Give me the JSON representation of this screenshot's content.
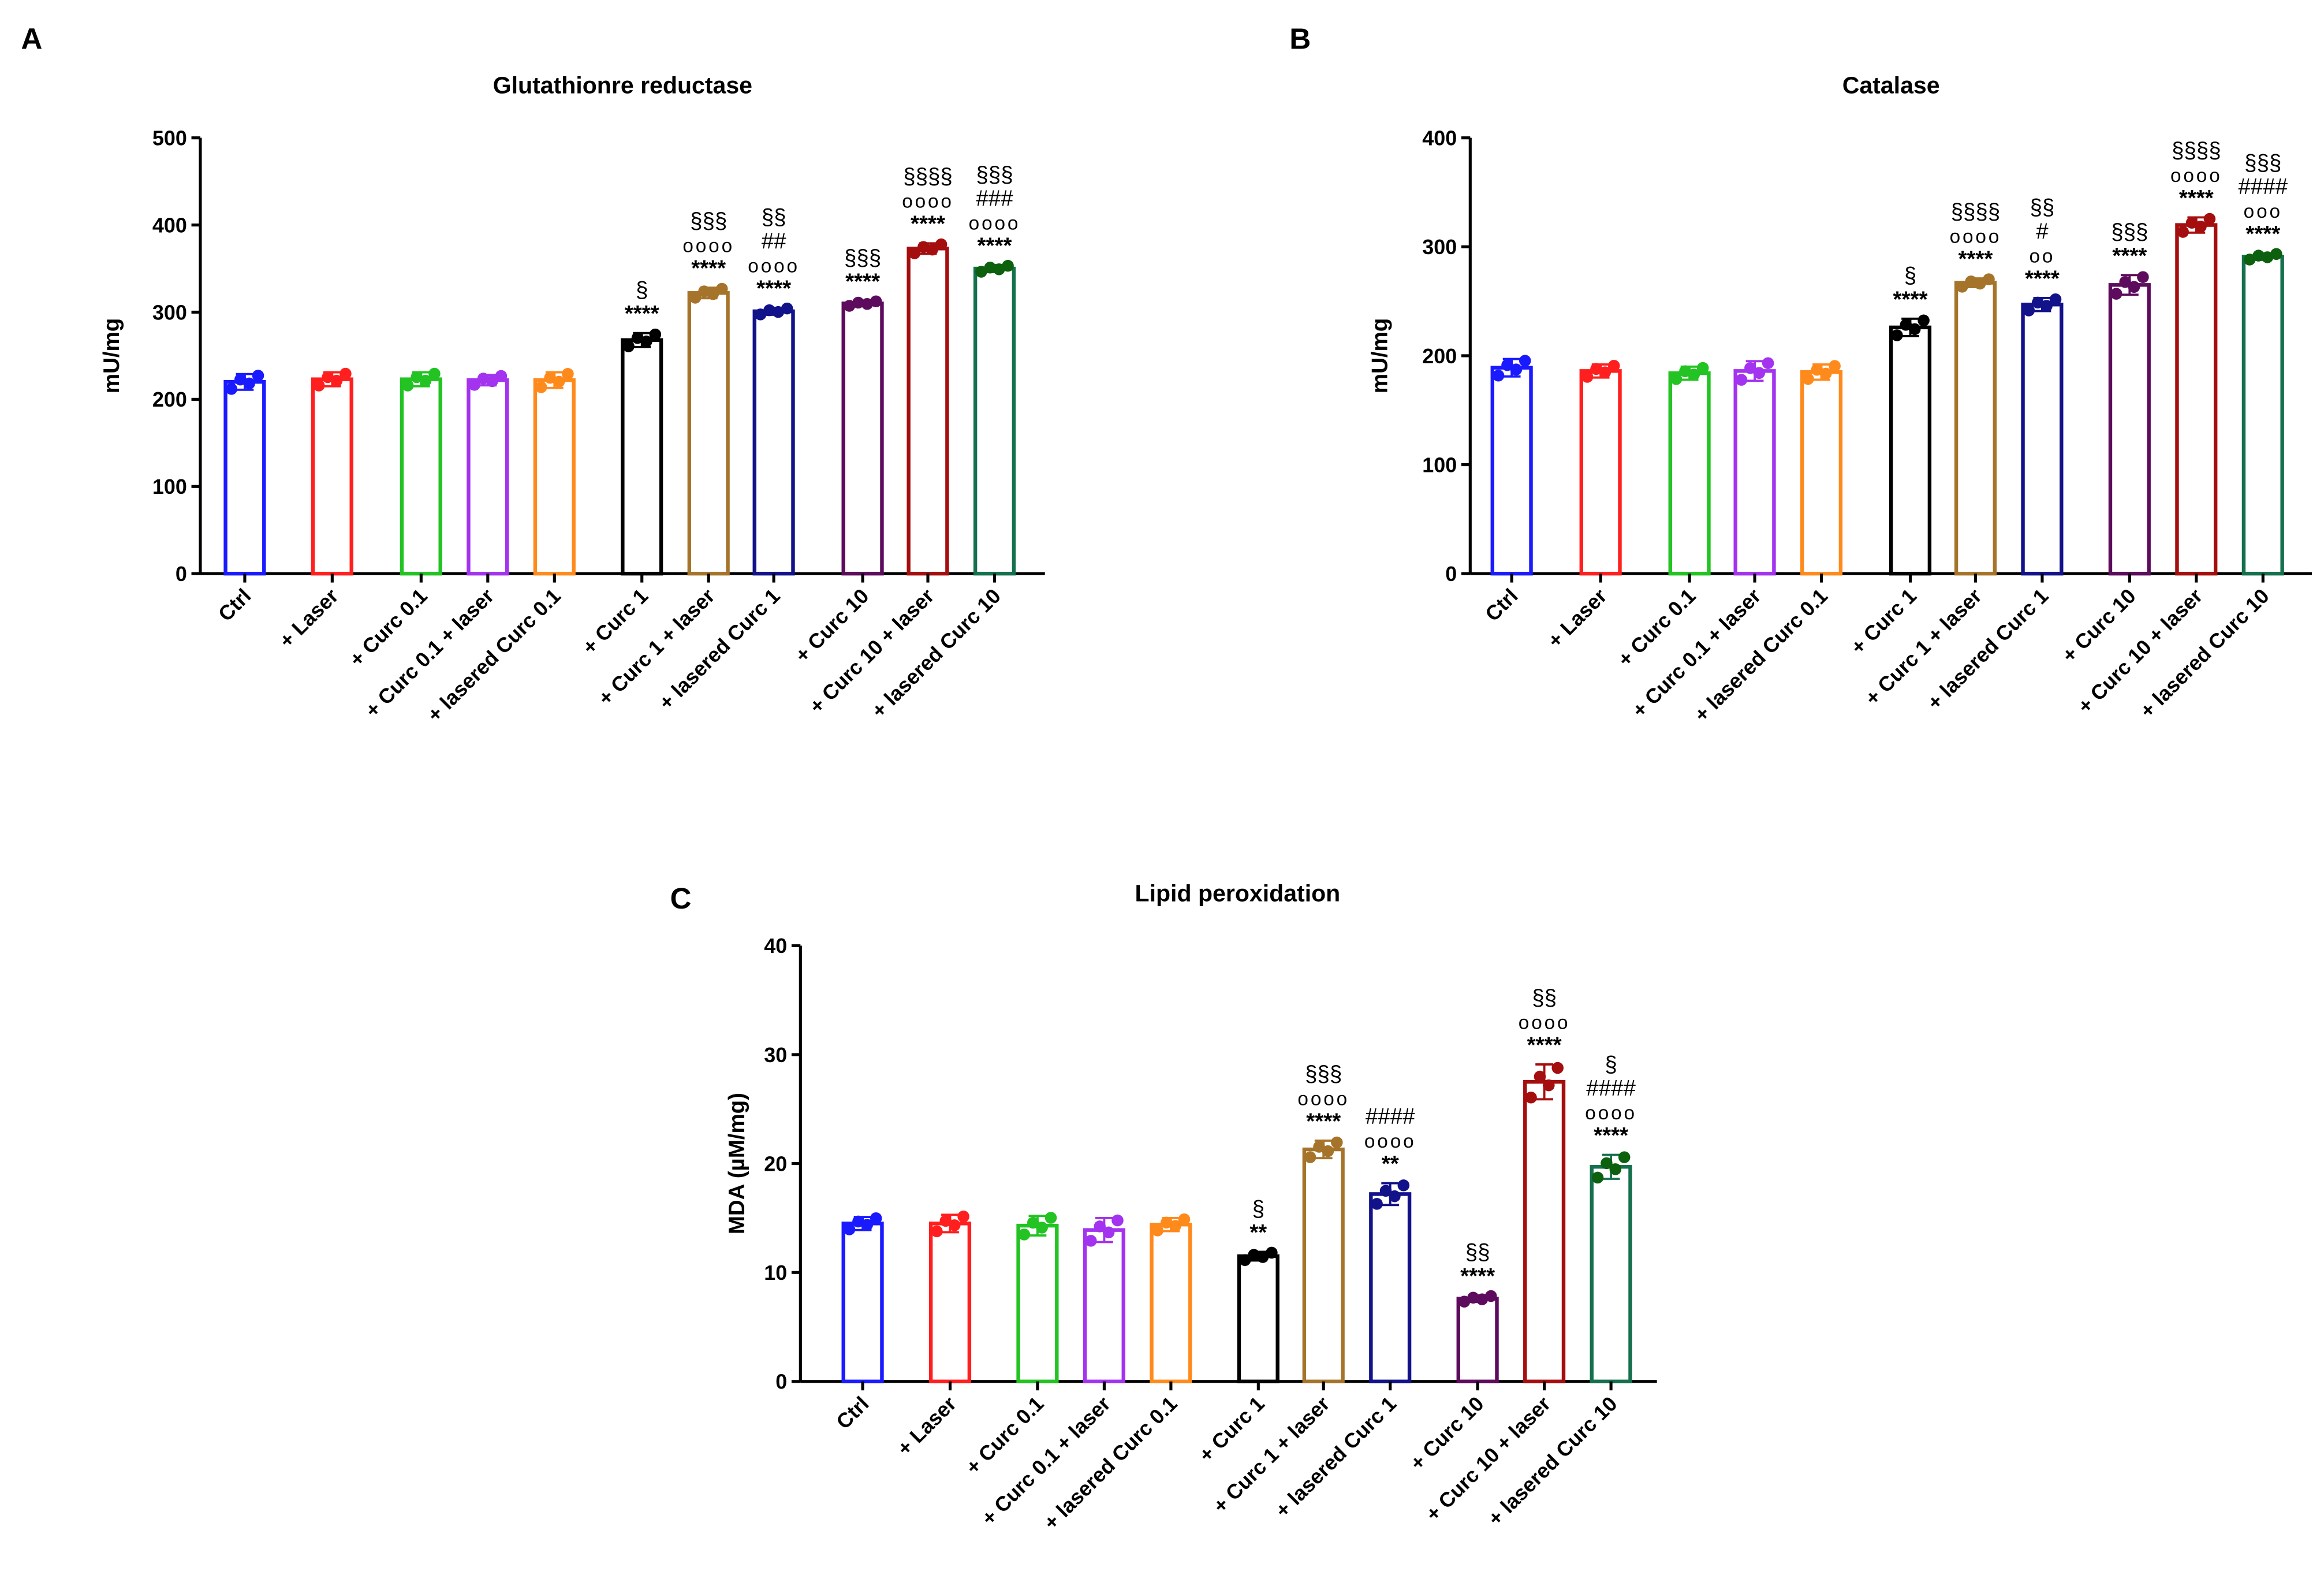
{
  "chart_data": [
    {
      "type": "bar",
      "panel": "A",
      "title": "Glutathionre reductase",
      "ylabel": "mU/mg",
      "xlabel": "",
      "ylim": [
        0,
        500
      ],
      "yticks": [
        0,
        100,
        200,
        300,
        400,
        500
      ],
      "categories": [
        "Ctrl",
        "+ Laser",
        "+ Curc 0.1",
        "+ Curc 0.1 + laser",
        "+ lasered Curc 0.1",
        "+ Curc 1",
        "+ Curc 1 + laser",
        "+ lasered Curc 1",
        "+ Curc 10",
        "+ Curc 10 + laser",
        "+ lasered Curc 10"
      ],
      "values": [
        220,
        223,
        223,
        222,
        222,
        268,
        322,
        301,
        310,
        373,
        350
      ],
      "errors": [
        9,
        8,
        8,
        6,
        9,
        8,
        6,
        4,
        3,
        6,
        4
      ],
      "annotations": [
        [],
        [],
        [],
        [],
        [],
        [
          "§",
          "****"
        ],
        [
          "§§§",
          "oooo",
          "****"
        ],
        [
          "§§",
          "##",
          "oooo",
          "****"
        ],
        [
          "§§§",
          "****"
        ],
        [
          "§§§§",
          "oooo",
          "****"
        ],
        [
          "§§§",
          "###",
          "oooo",
          "****"
        ]
      ]
    },
    {
      "type": "bar",
      "panel": "B",
      "title": "Catalase",
      "ylabel": "mU/mg",
      "xlabel": "",
      "ylim": [
        0,
        400
      ],
      "yticks": [
        0,
        100,
        200,
        300,
        400
      ],
      "categories": [
        "Ctrl",
        "+ Laser",
        "+ Curc 0.1",
        "+ Curc 0.1 + laser",
        "+ lasered Curc 0.1",
        "+ Curc 1",
        "+ Curc 1 + laser",
        "+ lasered Curc 1",
        "+ Curc 10",
        "+ Curc 10 + laser",
        "+ lasered Curc 10"
      ],
      "values": [
        189,
        186,
        184,
        186,
        185,
        226,
        267,
        247,
        265,
        320,
        291
      ],
      "errors": [
        8,
        6,
        6,
        9,
        7,
        8,
        4,
        6,
        9,
        7,
        3
      ],
      "annotations": [
        [],
        [],
        [],
        [],
        [],
        [
          "§",
          "****"
        ],
        [
          "§§§§",
          "oooo",
          "****"
        ],
        [
          "§§",
          "#",
          "oo",
          "****"
        ],
        [
          "§§§",
          "****"
        ],
        [
          "§§§§",
          "oooo",
          "****"
        ],
        [
          "§§§",
          "####",
          "ooo",
          "****"
        ]
      ]
    },
    {
      "type": "bar",
      "panel": "C",
      "title": "Lipid peroxidation",
      "ylabel": "MDA (µM/mg)",
      "xlabel": "",
      "ylim": [
        0,
        40
      ],
      "yticks": [
        0,
        10,
        20,
        30,
        40
      ],
      "categories": [
        "Ctrl",
        "+ Laser",
        "+ Curc 0.1",
        "+ Curc 0.1 + laser",
        "+ lasered Curc 0.1",
        "+ Curc 1",
        "+ Curc 1 + laser",
        "+ lasered Curc 1",
        "+ Curc 10",
        "+ Curc 10 + laser",
        "+ lasered Curc 10"
      ],
      "values": [
        14.5,
        14.5,
        14.3,
        13.9,
        14.4,
        11.5,
        21.3,
        17.2,
        7.6,
        27.5,
        19.7
      ],
      "errors": [
        0.6,
        0.8,
        0.9,
        1.1,
        0.6,
        0.4,
        0.8,
        1.0,
        0.3,
        1.6,
        1.1
      ],
      "annotations": [
        [],
        [],
        [],
        [],
        [],
        [
          "§",
          "**"
        ],
        [
          "§§§",
          "oooo",
          "****"
        ],
        [
          "####",
          "oooo",
          "**"
        ],
        [
          "§§",
          "****"
        ],
        [
          "§§",
          "oooo",
          "****"
        ],
        [
          "§",
          "####",
          "oooo",
          "****"
        ]
      ]
    }
  ],
  "colors": {
    "bars": [
      "#1a1aff",
      "#ff1f1f",
      "#22c322",
      "#a333ee",
      "#ff8a1c",
      "#000000",
      "#a5742a",
      "#12128a",
      "#5d0b5d",
      "#a50e0e",
      "#15704d"
    ],
    "dots": [
      "#1a1aff",
      "#ff1f1f",
      "#22c322",
      "#a333ee",
      "#ff8a1c",
      "#000000",
      "#a5742a",
      "#12128a",
      "#5d0b5d",
      "#a50e0e",
      "#0d600d"
    ]
  }
}
